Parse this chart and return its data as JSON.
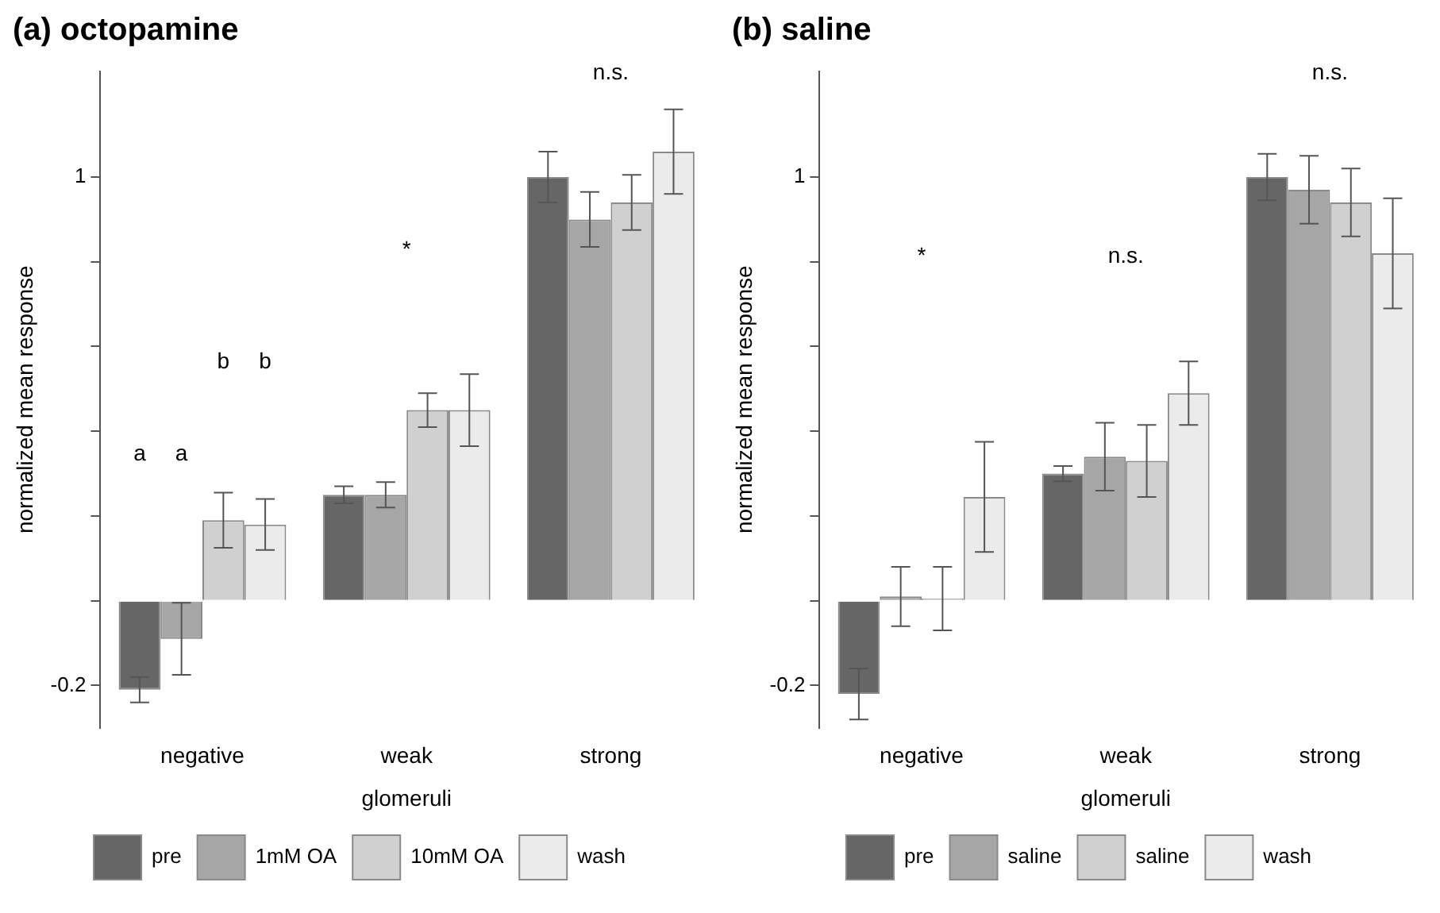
{
  "chart_data": [
    {
      "type": "bar",
      "title": "(a)  octopamine",
      "xlabel": "glomeruli",
      "ylabel": "normalized mean response",
      "categories": [
        "negative",
        "weak",
        "strong"
      ],
      "series": [
        {
          "name": "pre",
          "color": "#666666",
          "values": [
            -0.21,
            0.25,
            1.0
          ],
          "errors": [
            0.03,
            0.02,
            0.06
          ]
        },
        {
          "name": "1mM OA",
          "color": "#a6a6a6",
          "values": [
            -0.09,
            0.25,
            0.9
          ],
          "errors": [
            0.085,
            0.03,
            0.065
          ]
        },
        {
          "name": "10mM OA",
          "color": "#d0d0d0",
          "values": [
            0.19,
            0.45,
            0.94
          ],
          "errors": [
            0.065,
            0.04,
            0.065
          ]
        },
        {
          "name": "wash",
          "color": "#ebebeb",
          "values": [
            0.18,
            0.45,
            1.06
          ],
          "errors": [
            0.06,
            0.085,
            0.1
          ]
        }
      ],
      "ylim": [
        -0.3,
        1.25
      ],
      "yticks": [
        {
          "value": -0.2,
          "label": "-0.2"
        },
        {
          "value": 0,
          "label": null
        },
        {
          "value": 0.2,
          "label": null
        },
        {
          "value": 0.4,
          "label": null
        },
        {
          "value": 0.6,
          "label": null
        },
        {
          "value": 0.8,
          "label": null
        },
        1
      ],
      "annotations": [
        "a",
        "a",
        "b",
        "b",
        "*",
        "n.s."
      ],
      "grid": false,
      "legend": "bottom"
    },
    {
      "type": "bar",
      "title": "(b)  saline",
      "xlabel": "glomeruli",
      "ylabel": "normalized mean response",
      "categories": [
        "negative",
        "weak",
        "strong"
      ],
      "series": [
        {
          "name": "pre",
          "color": "#666666",
          "values": [
            -0.22,
            0.3,
            1.0
          ],
          "errors": [
            0.06,
            0.018,
            0.055
          ]
        },
        {
          "name": "saline",
          "color": "#a6a6a6",
          "values": [
            0.01,
            0.34,
            0.97
          ],
          "errors": [
            0.07,
            0.08,
            0.08
          ]
        },
        {
          "name": "saline",
          "color": "#d0d0d0",
          "values": [
            0.005,
            0.33,
            0.94
          ],
          "errors": [
            0.075,
            0.085,
            0.08
          ]
        },
        {
          "name": "wash",
          "color": "#ebebeb",
          "values": [
            0.245,
            0.49,
            0.82
          ],
          "errors": [
            0.13,
            0.075,
            0.13
          ]
        }
      ],
      "ylim": [
        -0.3,
        1.25
      ],
      "yticks": [
        {
          "value": -0.2,
          "label": "-0.2"
        },
        {
          "value": 0,
          "label": null
        },
        {
          "value": 0.2,
          "label": null
        },
        {
          "value": 0.4,
          "label": null
        },
        {
          "value": 0.6,
          "label": null
        },
        {
          "value": 0.8,
          "label": null
        },
        1
      ],
      "annotations": [
        "*",
        "n.s.",
        "n.s."
      ],
      "grid": false,
      "legend": "bottom"
    }
  ]
}
